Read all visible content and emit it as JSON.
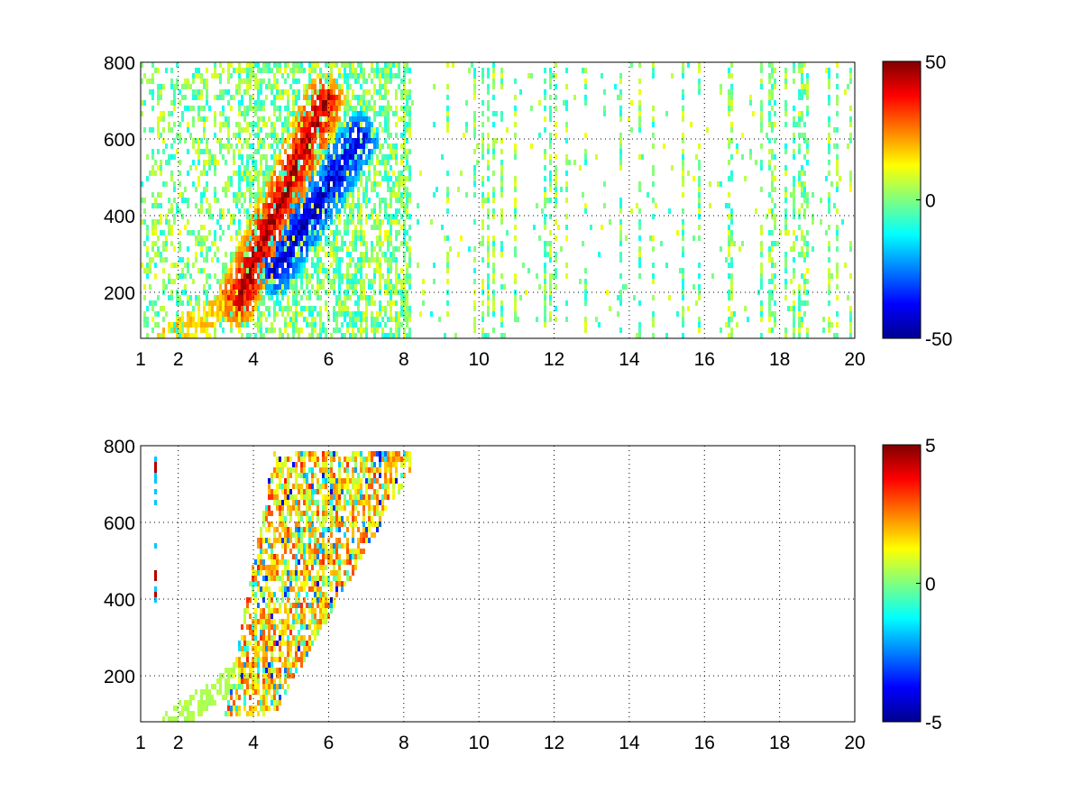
{
  "chart_data": [
    {
      "type": "heatmap",
      "title": "",
      "xlabel": "",
      "ylabel": "",
      "xlim": [
        1,
        20
      ],
      "ylim": [
        80,
        800
      ],
      "x_ticks": [
        1,
        2,
        4,
        6,
        8,
        10,
        12,
        14,
        16,
        18,
        20
      ],
      "y_ticks": [
        200,
        400,
        600,
        800
      ],
      "grid": true,
      "colormap": "jet",
      "clim": [
        -50,
        50
      ],
      "colorbar_ticks": [
        -50,
        0,
        50
      ],
      "features": [
        {
          "kind": "ridge",
          "sign": "positive",
          "from": [
            3.6,
            180
          ],
          "to": [
            5.9,
            700
          ],
          "peak": 45
        },
        {
          "kind": "ridge",
          "sign": "negative",
          "from": [
            4.6,
            260
          ],
          "to": [
            6.8,
            600
          ],
          "peak": -42
        },
        {
          "kind": "low_curve",
          "from": [
            1.7,
            80
          ],
          "to": [
            3.6,
            180
          ],
          "value": 18
        },
        {
          "kind": "scatter_band",
          "x_range": [
            1,
            20
          ],
          "y_range": [
            80,
            800
          ],
          "value_range": [
            -12,
            12
          ]
        }
      ]
    },
    {
      "type": "heatmap",
      "title": "",
      "xlabel": "",
      "ylabel": "",
      "xlim": [
        1,
        20
      ],
      "ylim": [
        80,
        800
      ],
      "x_ticks": [
        1,
        2,
        4,
        6,
        8,
        10,
        12,
        14,
        16,
        18,
        20
      ],
      "y_ticks": [
        200,
        400,
        600,
        800
      ],
      "grid": true,
      "colormap": "jet",
      "clim": [
        -5,
        5
      ],
      "colorbar_ticks": [
        -5,
        0,
        5
      ],
      "features": [
        {
          "kind": "blob",
          "x_range": [
            3.6,
            8.2
          ],
          "y_range": [
            100,
            780
          ],
          "value_range": [
            -4,
            3.5
          ]
        },
        {
          "kind": "low_curve",
          "from": [
            1.8,
            80
          ],
          "to": [
            3.6,
            200
          ],
          "value": 0.5
        },
        {
          "kind": "spike",
          "x": 1.4,
          "y_range": [
            380,
            780
          ],
          "value": 4.5
        }
      ]
    }
  ]
}
